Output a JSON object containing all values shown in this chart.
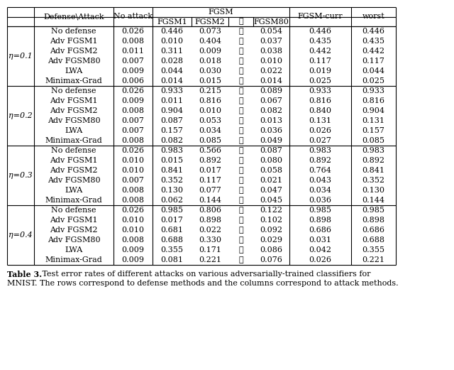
{
  "eta_groups": [
    "η=0.1",
    "η=0.2",
    "η=0.3",
    "η=0.4"
  ],
  "defense_methods": [
    "No defense",
    "Adv FGSM1",
    "Adv FGSM2",
    "Adv FGSM80",
    "LWA",
    "Minimax-Grad"
  ],
  "data": {
    "eta0.1": [
      [
        0.026,
        0.446,
        0.073,
        0.054,
        0.446,
        0.446
      ],
      [
        0.008,
        0.01,
        0.404,
        0.037,
        0.435,
        0.435
      ],
      [
        0.011,
        0.311,
        0.009,
        0.038,
        0.442,
        0.442
      ],
      [
        0.007,
        0.028,
        0.018,
        0.01,
        0.117,
        0.117
      ],
      [
        0.009,
        0.044,
        0.03,
        0.022,
        0.019,
        0.044
      ],
      [
        0.006,
        0.014,
        0.015,
        0.014,
        0.025,
        0.025
      ]
    ],
    "eta0.2": [
      [
        0.026,
        0.933,
        0.215,
        0.089,
        0.933,
        0.933
      ],
      [
        0.009,
        0.011,
        0.816,
        0.067,
        0.816,
        0.816
      ],
      [
        0.008,
        0.904,
        0.01,
        0.082,
        0.84,
        0.904
      ],
      [
        0.007,
        0.087,
        0.053,
        0.013,
        0.131,
        0.131
      ],
      [
        0.007,
        0.157,
        0.034,
        0.036,
        0.026,
        0.157
      ],
      [
        0.008,
        0.082,
        0.085,
        0.049,
        0.027,
        0.085
      ]
    ],
    "eta0.3": [
      [
        0.026,
        0.983,
        0.566,
        0.087,
        0.983,
        0.983
      ],
      [
        0.01,
        0.015,
        0.892,
        0.08,
        0.892,
        0.892
      ],
      [
        0.01,
        0.841,
        0.017,
        0.058,
        0.764,
        0.841
      ],
      [
        0.007,
        0.352,
        0.117,
        0.021,
        0.043,
        0.352
      ],
      [
        0.008,
        0.13,
        0.077,
        0.047,
        0.034,
        0.13
      ],
      [
        0.008,
        0.062,
        0.144,
        0.045,
        0.036,
        0.144
      ]
    ],
    "eta0.4": [
      [
        0.026,
        0.985,
        0.806,
        0.122,
        0.985,
        0.985
      ],
      [
        0.01,
        0.017,
        0.898,
        0.102,
        0.898,
        0.898
      ],
      [
        0.01,
        0.681,
        0.022,
        0.092,
        0.686,
        0.686
      ],
      [
        0.008,
        0.688,
        0.33,
        0.029,
        0.031,
        0.688
      ],
      [
        0.009,
        0.355,
        0.171,
        0.086,
        0.042,
        0.355
      ],
      [
        0.009,
        0.081,
        0.221,
        0.076,
        0.026,
        0.221
      ]
    ]
  },
  "background_color": "#ffffff",
  "text_color": "#000000",
  "line_color": "#000000",
  "caption_bold": "Table 3.",
  "caption_normal": " Test error rates of different attacks on various adversarially-trained classifiers for",
  "caption_line2": "MNIST. The rows correspond to defense methods and the columns correspond to attack methods."
}
